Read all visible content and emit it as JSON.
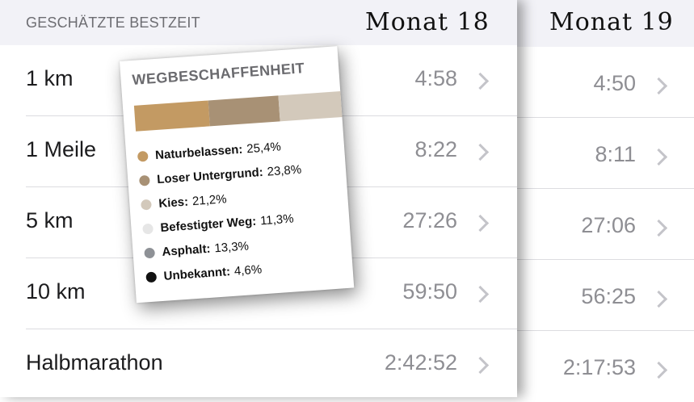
{
  "header": {
    "section_title": "GESCHÄTZTE BESTZEIT",
    "month_left": "Monat 18",
    "month_right": "Monat 19"
  },
  "rows": [
    {
      "label": "1 km",
      "value_m18": "4:58",
      "value_m19": "4:50"
    },
    {
      "label": "1 Meile",
      "value_m18": "8:22",
      "value_m19": "8:11"
    },
    {
      "label": "5 km",
      "value_m18": "27:26",
      "value_m19": "27:06"
    },
    {
      "label": "10 km",
      "value_m18": "59:50",
      "value_m19": "56:25"
    },
    {
      "label": "Halbmarathon",
      "value_m18": "2:42:52",
      "value_m19": "2:17:53"
    }
  ],
  "surface_card": {
    "title": "WEGBESCHAFFENHEIT",
    "items": [
      {
        "name": "Naturbelassen:",
        "value": "25,4%",
        "percent": 25.4,
        "color": "#c39a63"
      },
      {
        "name": "Loser Untergrund:",
        "value": "23,8%",
        "percent": 23.8,
        "color": "#a89175"
      },
      {
        "name": "Kies:",
        "value": "21,2%",
        "percent": 21.2,
        "color": "#d3c9bb"
      },
      {
        "name": "Befestigter Weg:",
        "value": "11,3%",
        "percent": 11.3,
        "color": "#e6e6e6"
      },
      {
        "name": "Asphalt:",
        "value": "13,3%",
        "percent": 13.3,
        "color": "#8e9196"
      },
      {
        "name": "Unbekannt:",
        "value": "4,6%",
        "percent": 4.6,
        "color": "#111111"
      }
    ]
  },
  "icons": {
    "row_chevron": "chevron-right-icon"
  }
}
